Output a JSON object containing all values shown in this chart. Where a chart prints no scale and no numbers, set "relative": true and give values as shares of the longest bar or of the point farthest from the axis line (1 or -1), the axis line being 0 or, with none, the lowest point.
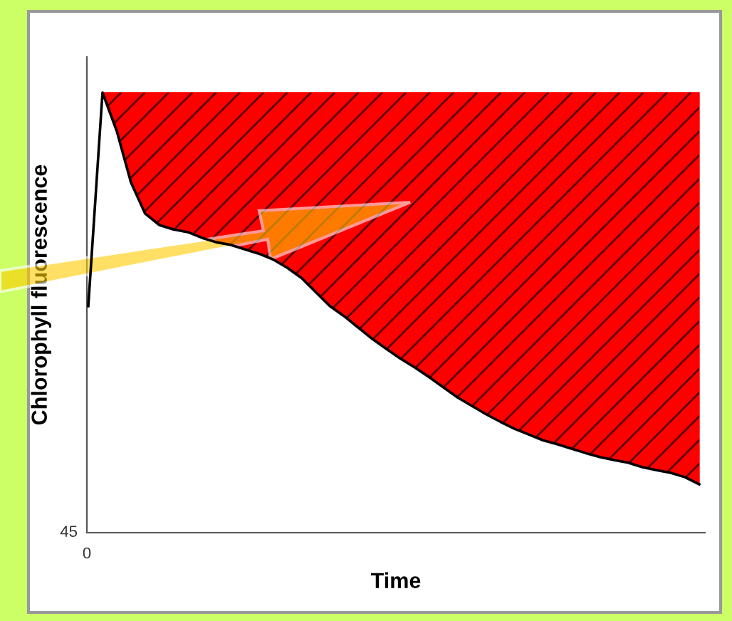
{
  "chart_data": {
    "type": "line",
    "relative": true,
    "xlabel": "Time",
    "ylabel": "Chlorophyll fluorescence",
    "categories": [
      null,
      null,
      null,
      null,
      null,
      null,
      null,
      null,
      null,
      null,
      null,
      null,
      null,
      null,
      null,
      null,
      null,
      null,
      null,
      null,
      null,
      null,
      null,
      null,
      null,
      null,
      null,
      null,
      null,
      null,
      null,
      null,
      null,
      null,
      null,
      null,
      null,
      null,
      null,
      null,
      null,
      null,
      null,
      null
    ],
    "series": [
      {
        "color": "#000000",
        "values": [
          0.515,
          1.0,
          0.913,
          0.796,
          0.725,
          0.699,
          0.689,
          0.683,
          0.67,
          0.66,
          0.654,
          0.644,
          0.634,
          0.621,
          0.602,
          0.579,
          0.547,
          0.515,
          0.492,
          0.466,
          0.44,
          0.417,
          0.395,
          0.375,
          0.353,
          0.33,
          0.307,
          0.288,
          0.269,
          0.252,
          0.236,
          0.223,
          0.21,
          0.201,
          0.191,
          0.181,
          0.172,
          0.165,
          0.159,
          0.149,
          0.142,
          0.136,
          0.126,
          0.11
        ],
        "lower": [
          null,
          1.0,
          0.913,
          0.796,
          0.725,
          0.699,
          0.689,
          0.683,
          0.67,
          0.66,
          0.654,
          0.644,
          0.634,
          0.621,
          0.602,
          0.579,
          0.547,
          0.515,
          0.492,
          0.466,
          0.44,
          0.417,
          0.395,
          0.375,
          0.353,
          0.33,
          0.307,
          0.288,
          0.269,
          0.252,
          0.236,
          0.223,
          0.21,
          0.201,
          0.191,
          0.181,
          0.172,
          0.165,
          0.159,
          0.149,
          0.142,
          0.136,
          0.126,
          0.11
        ],
        "upper": [
          null,
          1,
          1,
          1,
          1,
          1,
          1,
          1,
          1,
          1,
          1,
          1,
          1,
          1,
          1,
          1,
          1,
          1,
          1,
          1,
          1,
          1,
          1,
          1,
          1,
          1,
          1,
          1,
          1,
          1,
          1,
          1,
          1,
          1,
          1,
          1,
          1,
          1,
          1,
          1,
          1,
          1,
          1,
          1
        ]
      }
    ],
    "annotations": [
      "45",
      "0"
    ]
  }
}
